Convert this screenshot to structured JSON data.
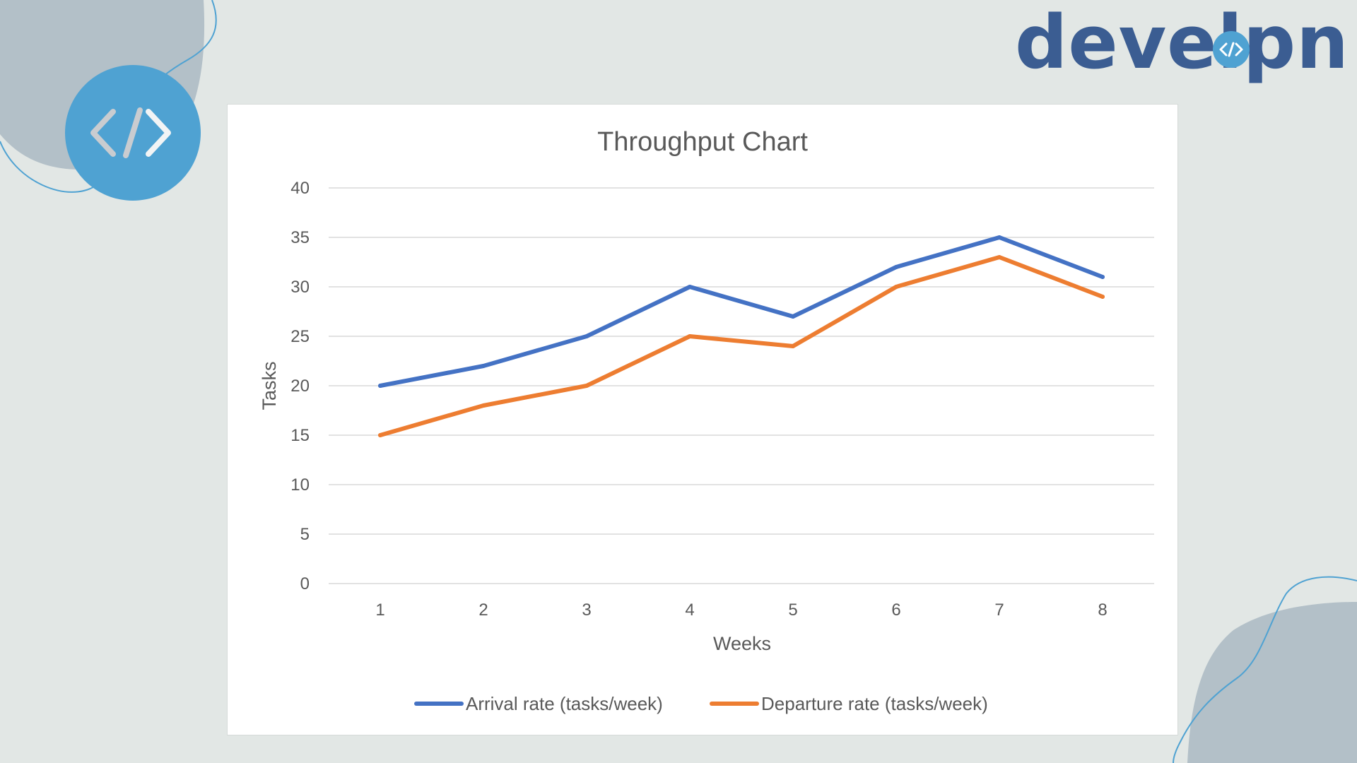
{
  "brand": {
    "logo_text": "develpn",
    "accent": "#4fa2d2",
    "logo_color": "#3b5d92"
  },
  "icons": {
    "badge": "code-brackets-icon",
    "logo_mark": "code-brackets-icon"
  },
  "chart_data": {
    "type": "line",
    "title": "Throughput Chart",
    "xlabel": "Weeks",
    "ylabel": "Tasks",
    "categories": [
      "1",
      "2",
      "3",
      "4",
      "5",
      "6",
      "7",
      "8"
    ],
    "ylim": [
      0,
      40
    ],
    "yticks": [
      "0",
      "5",
      "10",
      "15",
      "20",
      "25",
      "30",
      "35",
      "40"
    ],
    "grid": true,
    "legend_position": "bottom",
    "series": [
      {
        "name": "Arrival rate (tasks/week)",
        "color": "#4472c4",
        "values": [
          20,
          22,
          25,
          30,
          27,
          32,
          35,
          31
        ]
      },
      {
        "name": "Departure rate (tasks/week)",
        "color": "#ed7d31",
        "values": [
          15,
          18,
          20,
          25,
          24,
          30,
          33,
          29
        ]
      }
    ]
  }
}
